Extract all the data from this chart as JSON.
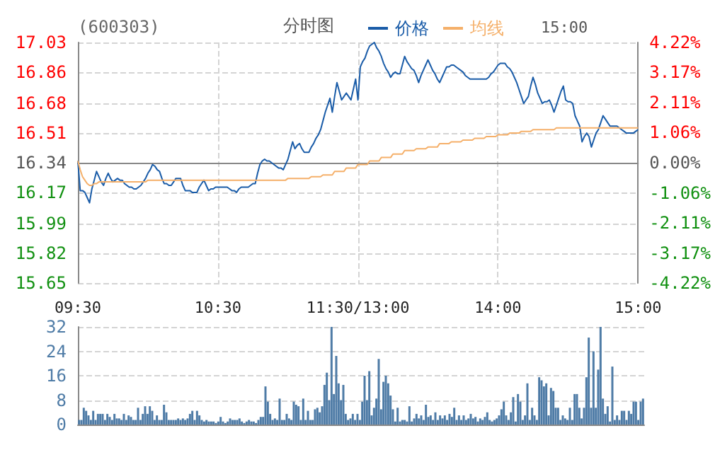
{
  "chart_data": [
    {
      "type": "line",
      "title": "(600303)",
      "subtitle": "分时图",
      "annotations": [
        "15:00"
      ],
      "legend": "top",
      "grid": true,
      "categories": [
        "09:30",
        null,
        null,
        null,
        null,
        null,
        null,
        null,
        null,
        null,
        null,
        null,
        null,
        null,
        null,
        null,
        null,
        null,
        null,
        null,
        null,
        null,
        null,
        null,
        null,
        null,
        null,
        null,
        null,
        null,
        null,
        null,
        null,
        null,
        null,
        null,
        null,
        null,
        null,
        null,
        null,
        null,
        null,
        null,
        null,
        null,
        null,
        null,
        null,
        null,
        null,
        null,
        null,
        null,
        null,
        null,
        null,
        null,
        null,
        null,
        "10:30",
        null,
        null,
        null,
        null,
        null,
        null,
        null,
        null,
        null,
        null,
        null,
        null,
        null,
        null,
        null,
        null,
        null,
        null,
        null,
        null,
        null,
        null,
        null,
        null,
        null,
        null,
        null,
        null,
        null,
        null,
        null,
        null,
        null,
        null,
        null,
        null,
        null,
        null,
        null,
        null,
        null,
        null,
        null,
        null,
        null,
        null,
        null,
        null,
        null,
        null,
        null,
        null,
        null,
        null,
        null,
        null,
        null,
        null,
        null,
        "11:30/13:00",
        null,
        null,
        null,
        null,
        null,
        null,
        null,
        null,
        null,
        null,
        null,
        null,
        null,
        null,
        null,
        null,
        null,
        null,
        null,
        null,
        null,
        null,
        null,
        null,
        null,
        null,
        null,
        null,
        null,
        null,
        null,
        null,
        null,
        null,
        null,
        null,
        null,
        null,
        null,
        null,
        null,
        null,
        null,
        null,
        null,
        null,
        null,
        null,
        null,
        null,
        null,
        null,
        null,
        null,
        null,
        null,
        null,
        null,
        null,
        "14:00",
        null,
        null,
        null,
        null,
        null,
        null,
        null,
        null,
        null,
        null,
        null,
        null,
        null,
        null,
        null,
        null,
        null,
        null,
        null,
        null,
        null,
        null,
        null,
        null,
        null,
        null,
        null,
        null,
        null,
        null,
        null,
        null,
        null,
        null,
        null,
        null,
        null,
        null,
        null,
        null,
        null,
        null,
        null,
        null,
        null,
        null,
        null,
        null,
        null,
        null,
        null,
        null,
        null,
        null,
        null,
        null,
        null,
        null,
        null,
        "15:00"
      ],
      "ylim": [
        15.65,
        17.03
      ],
      "yticks": [
        15.65,
        15.82,
        15.99,
        16.17,
        16.34,
        16.51,
        16.68,
        16.86,
        17.03
      ],
      "y2lim": [
        -4.22,
        4.22
      ],
      "y2ticks": [
        {
          "value": -4.22,
          "label": "-4.22%"
        },
        {
          "value": -3.17,
          "label": "-3.17%"
        },
        {
          "value": -2.11,
          "label": "-2.11%"
        },
        {
          "value": -1.06,
          "label": "-1.06%"
        },
        {
          "value": 0,
          "label": "0.00%"
        },
        {
          "value": 1.06,
          "label": "1.06%"
        },
        {
          "value": 2.11,
          "label": "2.11%"
        },
        {
          "value": 3.17,
          "label": "3.17%"
        },
        {
          "value": 4.22,
          "label": "4.22%"
        }
      ],
      "series": [
        {
          "name": "价格",
          "color": "#1a5ca8",
          "values": [
            16.35,
            16.18,
            16.18,
            16.17,
            16.14,
            16.11,
            16.19,
            16.24,
            16.29,
            16.26,
            16.23,
            16.21,
            16.25,
            16.28,
            16.25,
            16.23,
            16.24,
            16.25,
            16.24,
            16.24,
            16.22,
            16.21,
            16.2,
            16.2,
            16.19,
            16.19,
            16.2,
            16.21,
            16.23,
            16.25,
            16.28,
            16.3,
            16.33,
            16.32,
            16.3,
            16.29,
            16.25,
            16.22,
            16.22,
            16.21,
            16.21,
            16.23,
            16.25,
            16.25,
            16.25,
            16.21,
            16.18,
            16.18,
            16.18,
            16.17,
            16.17,
            16.17,
            16.2,
            16.22,
            16.24,
            16.21,
            16.18,
            16.19,
            16.19,
            16.2,
            16.2,
            16.2,
            16.2,
            16.2,
            16.2,
            16.19,
            16.18,
            16.18,
            16.17,
            16.19,
            16.2,
            16.2,
            16.2,
            16.2,
            16.21,
            16.22,
            16.22,
            16.28,
            16.33,
            16.35,
            16.36,
            16.35,
            16.35,
            16.34,
            16.33,
            16.32,
            16.31,
            16.31,
            16.3,
            16.33,
            16.36,
            16.41,
            16.46,
            16.42,
            16.44,
            16.45,
            16.42,
            16.4,
            16.4,
            16.4,
            16.43,
            16.45,
            16.48,
            16.5,
            16.53,
            16.58,
            16.63,
            16.67,
            16.71,
            16.63,
            16.72,
            16.8,
            16.75,
            16.7,
            16.72,
            16.74,
            16.72,
            16.7,
            16.76,
            16.82,
            16.7,
            16.89,
            16.92,
            16.94,
            16.98,
            17.01,
            17.02,
            17.03,
            17.0,
            16.98,
            16.95,
            16.91,
            16.88,
            16.86,
            16.83,
            16.85,
            16.86,
            16.85,
            16.85,
            16.9,
            16.95,
            16.92,
            16.9,
            16.88,
            16.87,
            16.84,
            16.8,
            16.84,
            16.87,
            16.9,
            16.93,
            16.9,
            16.87,
            16.85,
            16.82,
            16.8,
            16.83,
            16.86,
            16.89,
            16.89,
            16.9,
            16.9,
            16.89,
            16.88,
            16.87,
            16.86,
            16.84,
            16.83,
            16.82,
            16.82,
            16.82,
            16.82,
            16.82,
            16.82,
            16.82,
            16.82,
            16.83,
            16.85,
            16.86,
            16.88,
            16.9,
            16.91,
            16.91,
            16.91,
            16.89,
            16.88,
            16.86,
            16.83,
            16.8,
            16.76,
            16.72,
            16.68,
            16.7,
            16.72,
            16.78,
            16.83,
            16.79,
            16.74,
            16.71,
            16.68,
            16.69,
            16.69,
            16.7,
            16.67,
            16.63,
            16.67,
            16.71,
            16.75,
            16.78,
            16.7,
            16.69,
            16.69,
            16.68,
            16.61,
            16.58,
            16.55,
            16.46,
            16.49,
            16.51,
            16.49,
            16.43,
            16.47,
            16.51,
            16.53,
            16.57,
            16.61,
            16.59,
            16.57,
            16.55,
            16.55,
            16.55,
            16.55,
            16.54,
            16.53,
            16.52,
            16.51,
            16.51,
            16.51,
            16.51,
            16.52,
            16.53
          ]
        },
        {
          "name": "均线",
          "color": "#f5b06a",
          "values": [
            16.35,
            16.3,
            16.26,
            16.24,
            16.22,
            16.21,
            16.21,
            16.22,
            16.22,
            16.23,
            16.23,
            16.23,
            16.23,
            16.23,
            16.23,
            16.23,
            16.23,
            16.23,
            16.23,
            16.23,
            16.23,
            16.23,
            16.23,
            16.23,
            16.23,
            16.23,
            16.23,
            16.23,
            16.23,
            16.23,
            16.24,
            16.24,
            16.24,
            16.24,
            16.24,
            16.24,
            16.24,
            16.24,
            16.24,
            16.24,
            16.24,
            16.24,
            16.24,
            16.24,
            16.24,
            16.24,
            16.24,
            16.24,
            16.24,
            16.24,
            16.24,
            16.24,
            16.24,
            16.24,
            16.24,
            16.24,
            16.24,
            16.24,
            16.24,
            16.24,
            16.24,
            16.24,
            16.24,
            16.24,
            16.24,
            16.24,
            16.24,
            16.24,
            16.24,
            16.24,
            16.24,
            16.24,
            16.24,
            16.24,
            16.24,
            16.24,
            16.24,
            16.24,
            16.24,
            16.24,
            16.24,
            16.24,
            16.24,
            16.24,
            16.24,
            16.24,
            16.24,
            16.24,
            16.24,
            16.24,
            16.25,
            16.25,
            16.25,
            16.25,
            16.25,
            16.25,
            16.25,
            16.25,
            16.25,
            16.25,
            16.26,
            16.26,
            16.26,
            16.26,
            16.26,
            16.27,
            16.27,
            16.27,
            16.27,
            16.27,
            16.29,
            16.29,
            16.29,
            16.29,
            16.29,
            16.31,
            16.31,
            16.31,
            16.31,
            16.31,
            16.33,
            16.33,
            16.33,
            16.33,
            16.33,
            16.35,
            16.35,
            16.35,
            16.35,
            16.35,
            16.37,
            16.37,
            16.37,
            16.37,
            16.37,
            16.39,
            16.39,
            16.39,
            16.39,
            16.39,
            16.41,
            16.41,
            16.41,
            16.41,
            16.41,
            16.42,
            16.42,
            16.42,
            16.42,
            16.42,
            16.43,
            16.43,
            16.43,
            16.43,
            16.43,
            16.45,
            16.45,
            16.45,
            16.45,
            16.45,
            16.46,
            16.46,
            16.46,
            16.46,
            16.46,
            16.47,
            16.47,
            16.47,
            16.47,
            16.47,
            16.48,
            16.48,
            16.48,
            16.48,
            16.48,
            16.49,
            16.49,
            16.49,
            16.49,
            16.49,
            16.5,
            16.5,
            16.5,
            16.5,
            16.5,
            16.51,
            16.51,
            16.51,
            16.51,
            16.51,
            16.52,
            16.52,
            16.52,
            16.52,
            16.52,
            16.53,
            16.53,
            16.53,
            16.53,
            16.53,
            16.53,
            16.53,
            16.53,
            16.53,
            16.53,
            16.54,
            16.54,
            16.54,
            16.54,
            16.54,
            16.54,
            16.54,
            16.54,
            16.54,
            16.54,
            16.54,
            16.54,
            16.54,
            16.54,
            16.54,
            16.54,
            16.54,
            16.54,
            16.54,
            16.54,
            16.54,
            16.54,
            16.54,
            16.54,
            16.54,
            16.54,
            16.54,
            16.54,
            16.54,
            16.54,
            16.54,
            16.54,
            16.54,
            16.54,
            16.54,
            16.54
          ]
        }
      ]
    },
    {
      "type": "bar",
      "grid": "y",
      "tick_labels": "y",
      "color": "#4e7ba6",
      "categories": [
        null,
        null,
        null,
        null,
        null,
        null,
        null,
        null,
        null,
        null,
        null,
        null,
        null,
        null,
        null,
        null,
        null,
        null,
        null,
        null,
        null,
        null,
        null,
        null,
        null,
        null,
        null,
        null,
        null,
        null,
        null,
        null,
        null,
        null,
        null,
        null,
        null,
        null,
        null,
        null,
        null,
        null,
        null,
        null,
        null,
        null,
        null,
        null,
        null,
        null,
        null,
        null,
        null,
        null,
        null,
        null,
        null,
        null,
        null,
        null,
        null,
        null,
        null,
        null,
        null,
        null,
        null,
        null,
        null,
        null,
        null,
        null,
        null,
        null,
        null,
        null,
        null,
        null,
        null,
        null,
        null,
        null,
        null,
        null,
        null,
        null,
        null,
        null,
        null,
        null,
        null,
        null,
        null,
        null,
        null,
        null,
        null,
        null,
        null,
        null,
        null,
        null,
        null,
        null,
        null,
        null,
        null,
        null,
        null,
        null,
        null,
        null,
        null,
        null,
        null,
        null,
        null,
        null,
        null,
        null,
        null,
        null,
        null,
        null,
        null,
        null,
        null,
        null,
        null,
        null,
        null,
        null,
        null,
        null,
        null,
        null,
        null,
        null,
        null,
        null,
        null,
        null,
        null,
        null,
        null,
        null,
        null,
        null,
        null,
        null,
        null,
        null,
        null,
        null,
        null,
        null,
        null,
        null,
        null,
        null,
        null,
        null,
        null,
        null,
        null,
        null,
        null,
        null,
        null,
        null,
        null,
        null,
        null,
        null,
        null,
        null,
        null,
        null,
        null,
        null,
        null,
        null,
        null,
        null,
        null,
        null,
        null,
        null,
        null,
        null,
        null,
        null,
        null,
        null,
        null,
        null,
        null,
        null,
        null,
        null,
        null,
        null,
        null,
        null,
        null,
        null,
        null,
        null,
        null,
        null,
        null,
        null,
        null,
        null,
        null,
        null,
        null,
        null,
        null,
        null,
        null,
        null,
        null,
        null,
        null,
        null,
        null,
        null,
        null,
        null,
        null,
        null,
        null,
        null,
        null,
        null,
        null,
        null,
        null,
        null
      ],
      "ylim": [
        0,
        32
      ],
      "yticks": [
        0,
        8,
        16,
        24,
        32
      ],
      "values": [
        1.5,
        1.5,
        5.5,
        4.5,
        3,
        1.5,
        4.5,
        1.5,
        3.5,
        3.5,
        3.5,
        1.5,
        3.5,
        2.5,
        1.5,
        3.5,
        2,
        2,
        1.5,
        3.5,
        1.5,
        3,
        2.5,
        1.5,
        1.5,
        5.5,
        1.5,
        3.5,
        6,
        3.5,
        6,
        4.5,
        1.5,
        3,
        1.5,
        1.5,
        6.5,
        4,
        1.5,
        1.5,
        1.5,
        1.5,
        2,
        1.5,
        2,
        1.5,
        2,
        3.5,
        4.5,
        1.5,
        4.5,
        3,
        1.5,
        1,
        1.5,
        1,
        1,
        1,
        0.5,
        1,
        2.5,
        1,
        0.5,
        1,
        2,
        1.5,
        1.5,
        1.5,
        2,
        1,
        0.5,
        1,
        1.5,
        1,
        1,
        0.5,
        1.5,
        2.5,
        2.5,
        12.5,
        7.5,
        3.5,
        1.5,
        2,
        1.5,
        8.5,
        1.5,
        1.5,
        3.5,
        2,
        1.5,
        7.5,
        6.5,
        6,
        1.5,
        8.5,
        1.5,
        4.5,
        1.5,
        1.5,
        5,
        5.5,
        4,
        6,
        13,
        17,
        8,
        32,
        10,
        22.5,
        13.5,
        8,
        13,
        3.5,
        1.5,
        2,
        3.5,
        1.5,
        3.5,
        1.5,
        7.5,
        16,
        8,
        17.5,
        3,
        5.5,
        8.5,
        21.5,
        5,
        14,
        16,
        13.5,
        9.5,
        5,
        1,
        5.5,
        1,
        1.5,
        1.5,
        1,
        6,
        1,
        2,
        3.5,
        2,
        3,
        1.5,
        6.5,
        2.5,
        3,
        1.5,
        4,
        1.5,
        3,
        2,
        3,
        1.5,
        3.5,
        2.5,
        5.5,
        1.5,
        3,
        1.5,
        3,
        1.5,
        2,
        3.5,
        2,
        2.5,
        1,
        2,
        1.5,
        2.5,
        4,
        1.5,
        1,
        1.5,
        2,
        3,
        5,
        7.5,
        3,
        1.5,
        4,
        9,
        1,
        10,
        7.5,
        1.5,
        3,
        13.5,
        1.5,
        5.5,
        3,
        1.5,
        15.5,
        14.5,
        12.5,
        13.5,
        3,
        12,
        11,
        5.5,
        5.5,
        1.5,
        3,
        2,
        1.5,
        5.5,
        1.5,
        10,
        10,
        5.5,
        2,
        5.5,
        15.5,
        28.5,
        5.5,
        24,
        5.5,
        18,
        32,
        8.5,
        3.5,
        6,
        1,
        19,
        1.5,
        3,
        1.5,
        4.5,
        4.5,
        1.5,
        4.5,
        3.5,
        7.5,
        7.5,
        1.5,
        7.5,
        8.5
      ]
    }
  ]
}
